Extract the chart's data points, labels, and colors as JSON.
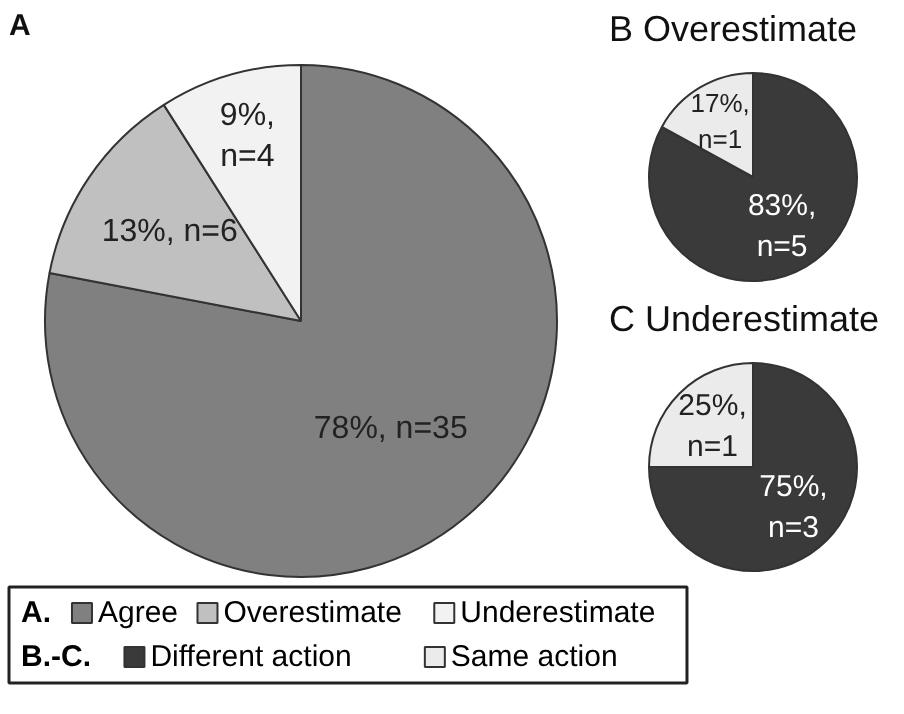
{
  "chart_data": [
    {
      "type": "pie",
      "title": "A",
      "categories": [
        "Agree",
        "Overestimate",
        "Underestimate"
      ],
      "values": [
        78,
        13,
        9
      ],
      "colors": [
        "#808080",
        "#c0c0c0",
        "#f2f2f2"
      ],
      "value_labels": [
        "78%, n=35",
        "13%, n=6",
        "9%, n=4"
      ],
      "legend": "bottom",
      "legend_title": "A."
    },
    {
      "type": "pie",
      "title": "B Overestimate",
      "categories": [
        "Different action",
        "Same action"
      ],
      "values": [
        83,
        17
      ],
      "colors": [
        "#3a3a3a",
        "#ebebeb"
      ],
      "value_labels": [
        "83%, n=5",
        "17%, n=1"
      ],
      "legend": "bottom",
      "legend_title": "B.-C."
    },
    {
      "type": "pie",
      "title": "C Underestimate",
      "categories": [
        null,
        null
      ],
      "values": [
        75,
        25
      ],
      "colors": [
        "#3a3a3a",
        "#ebebeb"
      ],
      "value_labels": [
        "75%, n=3",
        "25%, n=1"
      ]
    }
  ]
}
